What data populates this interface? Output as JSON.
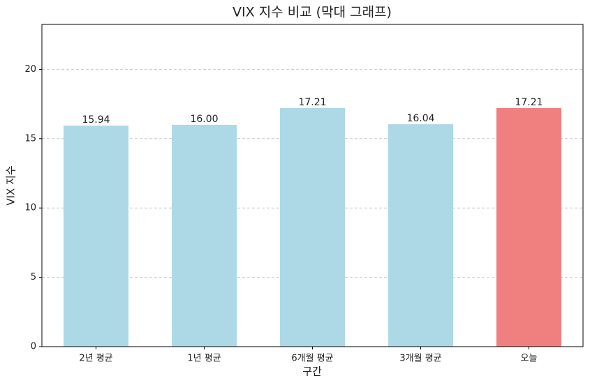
{
  "chart_data": {
    "type": "bar",
    "title": "VIX 지수 비교 (막대 그래프)",
    "x_label": "구간",
    "y_label": "VIX 지수",
    "categories": [
      "2년 평균",
      "1년 평균",
      "6개월 평균",
      "3개월 평균",
      "오늘"
    ],
    "values": [
      15.94,
      16.0,
      17.21,
      16.04,
      17.21
    ],
    "value_labels": [
      "15.94",
      "16.00",
      "17.21",
      "16.04",
      "17.21"
    ],
    "colors": [
      "#add8e6",
      "#add8e6",
      "#add8e6",
      "#add8e6",
      "#f08080"
    ],
    "ylim": [
      0,
      23.24
    ],
    "yticks": [
      0,
      5,
      10,
      15,
      20
    ],
    "grid": true
  }
}
